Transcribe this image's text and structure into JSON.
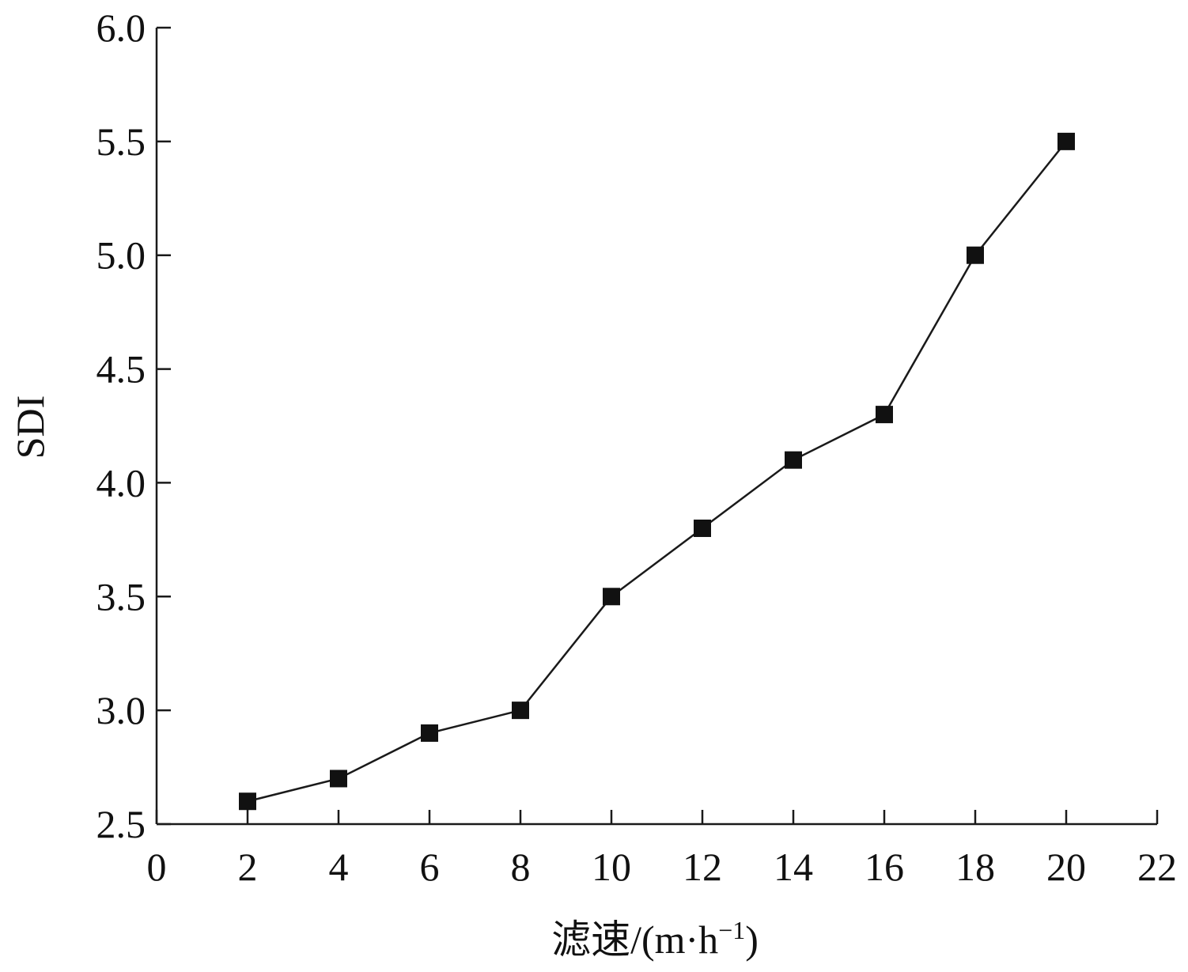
{
  "chart_data": {
    "type": "line",
    "x": [
      2,
      4,
      6,
      8,
      10,
      12,
      14,
      16,
      18,
      20
    ],
    "series": [
      {
        "values": [
          2.6,
          2.7,
          2.9,
          3.0,
          3.5,
          3.8,
          4.1,
          4.3,
          5.0,
          5.5
        ]
      }
    ],
    "xlabel": "滤速/(m·h",
    "xlabel_sup": "−1",
    "xlabel_close": ")",
    "ylabel": "SDI",
    "xlim": [
      0,
      22
    ],
    "ylim": [
      2.5,
      6.0
    ],
    "xticks": [
      "0",
      "2",
      "4",
      "6",
      "8",
      "10",
      "12",
      "14",
      "16",
      "18",
      "20",
      "22"
    ],
    "yticks": [
      "2.5",
      "3.0",
      "3.5",
      "4.0",
      "4.5",
      "5.0",
      "5.5",
      "6.0"
    ],
    "marker": "square",
    "grid": false,
    "colors": {
      "line": "#1a1a1a",
      "marker": "#111111",
      "axis": "#1a1a1a"
    }
  }
}
